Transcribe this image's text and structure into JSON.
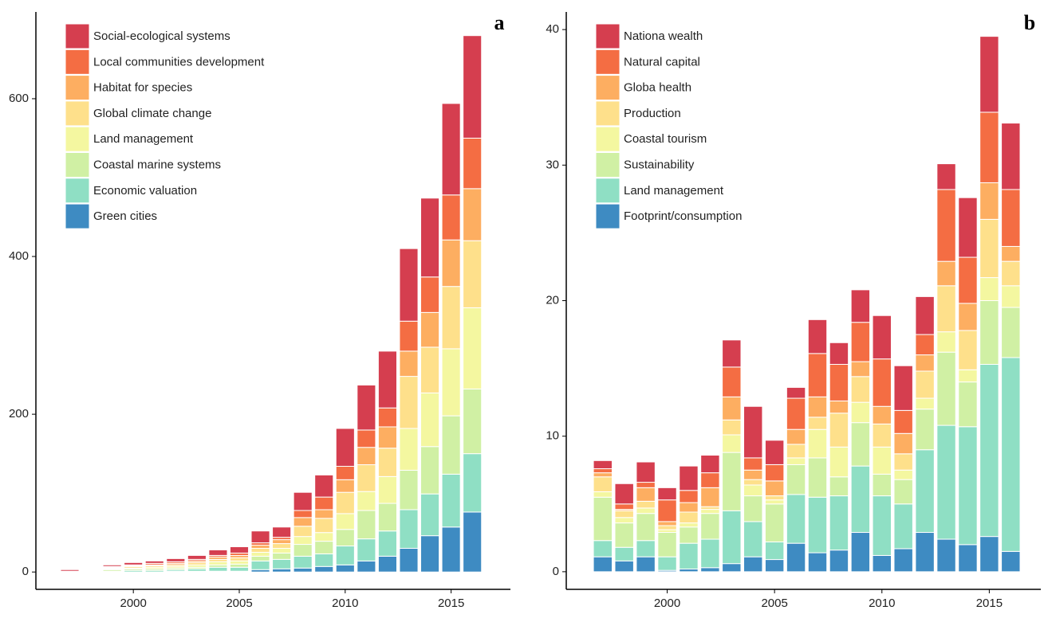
{
  "chart_data": [
    {
      "type": "bar",
      "stacked": true,
      "panel_label": "a",
      "legend": "top-left",
      "x": [
        1997,
        1998,
        1999,
        2000,
        2001,
        2002,
        2003,
        2004,
        2005,
        2006,
        2007,
        2008,
        2009,
        2010,
        2011,
        2012,
        2013,
        2014,
        2015,
        2016
      ],
      "xlim": [
        1995.4,
        2017.8
      ],
      "xticks": [
        2000,
        2005,
        2010,
        2015
      ],
      "ylim": [
        -22,
        710
      ],
      "yticks": [
        0,
        200,
        400,
        600
      ],
      "series": [
        {
          "name": "Green cities",
          "color": "#3e8bc2",
          "values": [
            0,
            0,
            0,
            0,
            0,
            1,
            1,
            1,
            1,
            3,
            4,
            5,
            7,
            9,
            14,
            20,
            30,
            46,
            57,
            76
          ]
        },
        {
          "name": "Economic valuation",
          "color": "#8fdfc4",
          "values": [
            0,
            1,
            1,
            2,
            2,
            2,
            3,
            5,
            5,
            11,
            12,
            15,
            16,
            24,
            28,
            32,
            49,
            53,
            67,
            74
          ]
        },
        {
          "name": "Coastal marine systems",
          "color": "#d0f0a4",
          "values": [
            1,
            1,
            2,
            2,
            2,
            2,
            2,
            3,
            4,
            6,
            8,
            15,
            16,
            21,
            36,
            35,
            50,
            60,
            74,
            82
          ]
        },
        {
          "name": "Land management",
          "color": "#f4f7a0",
          "values": [
            0,
            1,
            1,
            1,
            2,
            2,
            3,
            4,
            4,
            5,
            6,
            10,
            11,
            20,
            24,
            34,
            53,
            68,
            85,
            103
          ]
        },
        {
          "name": "Global climate change",
          "color": "#fee08b",
          "values": [
            0,
            1,
            1,
            2,
            2,
            2,
            3,
            3,
            4,
            5,
            6,
            13,
            18,
            27,
            34,
            36,
            66,
            58,
            79,
            85
          ]
        },
        {
          "name": "Habitat for species",
          "color": "#fdae61",
          "values": [
            0,
            1,
            1,
            1,
            1,
            2,
            2,
            3,
            3,
            4,
            5,
            11,
            11,
            16,
            22,
            27,
            32,
            44,
            59,
            66
          ]
        },
        {
          "name": "Local communities development",
          "color": "#f46d43",
          "values": [
            0,
            1,
            1,
            1,
            2,
            2,
            2,
            2,
            3,
            3,
            3,
            9,
            16,
            17,
            22,
            24,
            38,
            45,
            57,
            64
          ]
        },
        {
          "name": "Social-ecological systems",
          "color": "#d53e4f",
          "values": [
            2,
            1,
            2,
            3,
            3,
            4,
            5,
            7,
            8,
            15,
            13,
            23,
            28,
            48,
            57,
            72,
            92,
            100,
            116,
            130
          ]
        }
      ]
    },
    {
      "type": "bar",
      "stacked": true,
      "panel_label": "b",
      "legend": "top-left",
      "x": [
        1997,
        1998,
        1999,
        2000,
        2001,
        2002,
        2003,
        2004,
        2005,
        2006,
        2007,
        2008,
        2009,
        2010,
        2011,
        2012,
        2013,
        2014,
        2015,
        2016
      ],
      "xlim": [
        1995.3,
        2017.4
      ],
      "xticks": [
        2000,
        2005,
        2010,
        2015
      ],
      "ylim": [
        -1.3,
        41.3
      ],
      "yticks": [
        0,
        10,
        20,
        30,
        40
      ],
      "series": [
        {
          "name": "Footprint/consumption",
          "color": "#3e8bc2",
          "values": [
            1.1,
            0.8,
            1.1,
            0.1,
            0.2,
            0.3,
            0.6,
            1.1,
            0.9,
            2.1,
            1.4,
            1.6,
            2.9,
            1.2,
            1.7,
            2.9,
            2.4,
            2.0,
            2.6,
            1.5
          ]
        },
        {
          "name": "Land management",
          "color": "#8fdfc4",
          "values": [
            1.2,
            1.0,
            1.2,
            1.0,
            1.9,
            2.1,
            3.9,
            2.6,
            1.3,
            3.6,
            4.1,
            4.0,
            4.9,
            4.4,
            3.3,
            6.1,
            8.4,
            8.7,
            12.7,
            14.3
          ]
        },
        {
          "name": "Sustainability",
          "color": "#d0f0a4",
          "values": [
            3.2,
            1.8,
            2.0,
            1.8,
            1.2,
            1.9,
            4.3,
            1.9,
            2.8,
            2.2,
            2.9,
            1.4,
            3.2,
            1.6,
            1.8,
            3.0,
            5.4,
            3.3,
            4.7,
            3.7
          ]
        },
        {
          "name": "Coastal tourism",
          "color": "#f4f7a0",
          "values": [
            0.4,
            0.4,
            0.4,
            0.2,
            0.3,
            0.3,
            1.3,
            0.8,
            0.3,
            0.5,
            2.1,
            2.2,
            1.5,
            2.0,
            0.7,
            0.8,
            1.5,
            0.9,
            1.7,
            1.6
          ]
        },
        {
          "name": "Production",
          "color": "#fee08b",
          "values": [
            1.1,
            0.5,
            0.5,
            0.3,
            0.8,
            0.2,
            1.1,
            0.4,
            0.3,
            1.0,
            0.9,
            2.5,
            1.9,
            1.7,
            1.2,
            2.0,
            3.4,
            2.9,
            4.3,
            1.8
          ]
        },
        {
          "name": "Globa health",
          "color": "#fdae61",
          "values": [
            0.3,
            0.1,
            1.0,
            0.3,
            0.7,
            1.4,
            1.7,
            0.7,
            1.1,
            1.1,
            1.5,
            0.9,
            1.1,
            1.3,
            1.5,
            1.2,
            1.8,
            2.0,
            2.7,
            1.1
          ]
        },
        {
          "name": "Natural capital",
          "color": "#f46d43",
          "values": [
            0.3,
            0.4,
            0.4,
            1.6,
            0.9,
            1.1,
            2.2,
            0.9,
            1.2,
            2.3,
            3.2,
            2.7,
            2.9,
            3.5,
            1.7,
            1.5,
            5.3,
            3.4,
            5.2,
            4.2
          ]
        },
        {
          "name": "Nationa wealth",
          "color": "#d53e4f",
          "values": [
            0.6,
            1.5,
            1.5,
            0.9,
            1.8,
            1.3,
            2.0,
            3.8,
            1.8,
            0.8,
            2.5,
            1.6,
            2.4,
            3.2,
            3.3,
            2.8,
            1.9,
            4.4,
            5.6,
            4.9
          ]
        }
      ]
    }
  ]
}
